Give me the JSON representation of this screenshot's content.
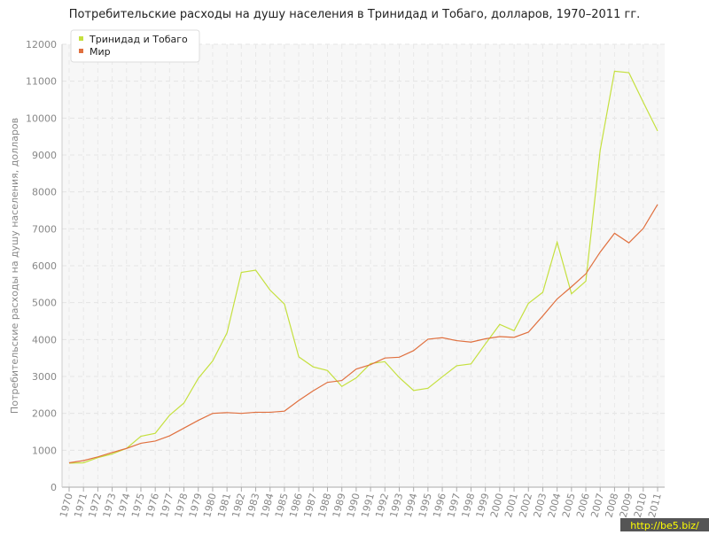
{
  "chart_data": {
    "type": "line",
    "title": "Потребительские расходы на душу населения в Тринидад и Тобаго, долларов, 1970–2011 гг.",
    "y_label": "Потребительские расходы на душу населения, долларов",
    "categories": [
      "1970",
      "1971",
      "1972",
      "1973",
      "1974",
      "1975",
      "1976",
      "1977",
      "1978",
      "1979",
      "1980",
      "1981",
      "1982",
      "1983",
      "1984",
      "1985",
      "1986",
      "1987",
      "1988",
      "1989",
      "1990",
      "1991",
      "1992",
      "1993",
      "1994",
      "1995",
      "1996",
      "1997",
      "1998",
      "1999",
      "2000",
      "2001",
      "2002",
      "2003",
      "2004",
      "2005",
      "2006",
      "2007",
      "2008",
      "2009",
      "2010",
      "2011"
    ],
    "series": [
      {
        "name": "Тринидад и Тобаго",
        "color": "#c5e03f",
        "values": [
          650,
          660,
          800,
          900,
          1050,
          1380,
          1460,
          1950,
          2280,
          2950,
          3420,
          4180,
          5820,
          5880,
          5340,
          4960,
          3530,
          3260,
          3160,
          2730,
          2960,
          3350,
          3400,
          2970,
          2620,
          2680,
          2990,
          3290,
          3340,
          3880,
          4410,
          4240,
          4980,
          5280,
          6640,
          5240,
          5580,
          9130,
          11270,
          11230,
          10430,
          9650
        ]
      },
      {
        "name": "Мир",
        "color": "#e0703f",
        "values": [
          660,
          720,
          820,
          940,
          1050,
          1190,
          1250,
          1390,
          1600,
          1810,
          2000,
          2020,
          2000,
          2030,
          2030,
          2060,
          2350,
          2610,
          2840,
          2890,
          3200,
          3320,
          3500,
          3520,
          3700,
          4010,
          4050,
          3970,
          3930,
          4020,
          4080,
          4060,
          4200,
          4640,
          5100,
          5430,
          5780,
          6370,
          6880,
          6620,
          7010,
          7660
        ]
      }
    ],
    "ylim": [
      0,
      12000
    ],
    "yticks": [
      0,
      1000,
      2000,
      3000,
      4000,
      5000,
      6000,
      7000,
      8000,
      9000,
      10000,
      11000,
      12000
    ],
    "grid": true,
    "legend": "upper left",
    "watermark": "http://be5.biz/"
  }
}
